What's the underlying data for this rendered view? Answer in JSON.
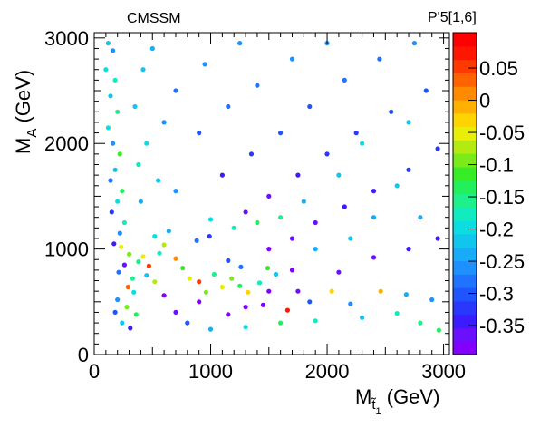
{
  "chart_data": {
    "type": "scatter",
    "title": "CMSSM",
    "xlabel": {
      "main": "M",
      "sub": "t̃",
      "subsub": "1",
      "unit": " (GeV)"
    },
    "ylabel": {
      "main": "M",
      "sub": "A",
      "unit": " (GeV)"
    },
    "colorbar_label": "P'5[1,6]",
    "xlim": [
      0,
      3050
    ],
    "ylim": [
      0,
      3050
    ],
    "clim": [
      -0.395,
      0.105
    ],
    "x_ticks": [
      0,
      1000,
      2000,
      3000
    ],
    "x_tick_labels": [
      "0",
      "1000",
      "2000",
      "3000"
    ],
    "y_ticks": [
      0,
      1000,
      2000,
      3000
    ],
    "y_tick_labels": [
      "0",
      "1000",
      "2000",
      "3000"
    ],
    "colorbar_ticks": [
      0.05,
      0,
      -0.05,
      -0.1,
      -0.15,
      -0.2,
      -0.25,
      -0.3,
      -0.35
    ],
    "colorbar_tick_labels": [
      "0.05",
      "0",
      "-0.05",
      "-0.1",
      "-0.15",
      "-0.2",
      "-0.25",
      "-0.3",
      "-0.35"
    ],
    "colorbar_colors": [
      "#8300ff",
      "#6a10ff",
      "#3a1cff",
      "#2a38ff",
      "#1e55ff",
      "#2173ff",
      "#1e90ff",
      "#18acf6",
      "#10c6ec",
      "#0cdde0",
      "#10ecc0",
      "#1ef08c",
      "#22f05a",
      "#36ec26",
      "#7aea1a",
      "#b2ea12",
      "#e8ee0a",
      "#ffd400",
      "#ffb000",
      "#ff8a00",
      "#ff6200",
      "#ff3a00",
      "#ff1600",
      "#ff0000"
    ],
    "grid": false,
    "legend": "none",
    "points": [
      [
        120,
        2950,
        -0.22
      ],
      [
        160,
        2880,
        -0.25
      ],
      [
        100,
        2700,
        -0.2
      ],
      [
        180,
        2600,
        -0.18
      ],
      [
        140,
        2450,
        -0.22
      ],
      [
        200,
        2300,
        -0.15
      ],
      [
        120,
        2150,
        -0.2
      ],
      [
        160,
        2000,
        -0.27
      ],
      [
        220,
        1900,
        -0.12
      ],
      [
        180,
        1750,
        -0.22
      ],
      [
        140,
        1650,
        -0.28
      ],
      [
        240,
        1550,
        -0.13
      ],
      [
        200,
        1450,
        -0.2
      ],
      [
        150,
        1350,
        -0.32
      ],
      [
        260,
        1250,
        -0.17
      ],
      [
        220,
        1150,
        -0.25
      ],
      [
        170,
        1050,
        -0.35
      ],
      [
        230,
        1020,
        -0.05
      ],
      [
        300,
        950,
        -0.1
      ],
      [
        260,
        850,
        -0.36
      ],
      [
        210,
        780,
        -0.28
      ],
      [
        330,
        720,
        -0.15
      ],
      [
        290,
        640,
        0.04
      ],
      [
        340,
        590,
        -0.2
      ],
      [
        200,
        520,
        -0.26
      ],
      [
        280,
        450,
        -0.1
      ],
      [
        180,
        400,
        -0.3
      ],
      [
        360,
        380,
        -0.14
      ],
      [
        240,
        300,
        -0.22
      ],
      [
        310,
        250,
        -0.34
      ],
      [
        420,
        930,
        -0.05
      ],
      [
        470,
        840,
        0.05
      ],
      [
        450,
        750,
        -0.22
      ],
      [
        520,
        690,
        -0.08
      ],
      [
        380,
        880,
        -0.16
      ],
      [
        600,
        1040,
        -0.08
      ],
      [
        560,
        960,
        -0.18
      ],
      [
        700,
        910,
        0.02
      ],
      [
        760,
        820,
        -0.12
      ],
      [
        820,
        720,
        -0.06
      ],
      [
        900,
        690,
        0.06
      ],
      [
        960,
        590,
        -0.1
      ],
      [
        1030,
        760,
        -0.15
      ],
      [
        1100,
        640,
        -0.06
      ],
      [
        1180,
        720,
        -0.09
      ],
      [
        1250,
        650,
        -0.14
      ],
      [
        1320,
        590,
        -0.04
      ],
      [
        1420,
        680,
        -0.17
      ],
      [
        1490,
        820,
        -0.12
      ],
      [
        1560,
        760,
        -0.22
      ],
      [
        1260,
        830,
        -0.28
      ],
      [
        1150,
        890,
        -0.31
      ],
      [
        520,
        1120,
        -0.2
      ],
      [
        640,
        1170,
        -0.24
      ],
      [
        880,
        1080,
        -0.28
      ],
      [
        990,
        1120,
        -0.32
      ],
      [
        1660,
        420,
        0.08
      ],
      [
        2040,
        600,
        -0.03
      ],
      [
        2460,
        600,
        -0.02
      ],
      [
        2680,
        570,
        -0.24
      ],
      [
        2900,
        520,
        -0.27
      ],
      [
        2200,
        480,
        -0.25
      ],
      [
        1850,
        500,
        -0.3
      ],
      [
        2600,
        390,
        -0.18
      ],
      [
        2800,
        300,
        -0.16
      ],
      [
        2960,
        230,
        -0.13
      ],
      [
        2300,
        350,
        -0.21
      ],
      [
        1900,
        320,
        -0.17
      ],
      [
        1600,
        300,
        -0.14
      ],
      [
        1300,
        260,
        -0.2
      ],
      [
        1000,
        240,
        -0.24
      ],
      [
        800,
        300,
        -0.31
      ],
      [
        700,
        400,
        -0.37
      ],
      [
        600,
        560,
        -0.38
      ],
      [
        1150,
        380,
        -0.38
      ],
      [
        1450,
        470,
        -0.38
      ],
      [
        1750,
        600,
        -0.37
      ],
      [
        2100,
        780,
        -0.36
      ],
      [
        2400,
        920,
        -0.36
      ],
      [
        2700,
        1000,
        -0.35
      ],
      [
        2950,
        1100,
        -0.34
      ],
      [
        1500,
        1000,
        -0.38
      ],
      [
        1700,
        1100,
        -0.37
      ],
      [
        1900,
        1250,
        -0.36
      ],
      [
        2150,
        1400,
        -0.35
      ],
      [
        2400,
        1550,
        -0.34
      ],
      [
        2700,
        1750,
        -0.33
      ],
      [
        2950,
        1950,
        -0.32
      ],
      [
        1300,
        1350,
        -0.37
      ],
      [
        1500,
        1500,
        -0.36
      ],
      [
        1750,
        1700,
        -0.34
      ],
      [
        2000,
        1900,
        -0.33
      ],
      [
        2250,
        2100,
        -0.32
      ],
      [
        2550,
        2300,
        -0.31
      ],
      [
        2850,
        2500,
        -0.3
      ],
      [
        1100,
        1700,
        -0.35
      ],
      [
        1350,
        1900,
        -0.33
      ],
      [
        1600,
        2100,
        -0.31
      ],
      [
        1850,
        2350,
        -0.3
      ],
      [
        2150,
        2600,
        -0.29
      ],
      [
        2450,
        2800,
        -0.28
      ],
      [
        2750,
        2950,
        -0.27
      ],
      [
        900,
        2100,
        -0.31
      ],
      [
        1150,
        2350,
        -0.29
      ],
      [
        1400,
        2550,
        -0.28
      ],
      [
        1700,
        2800,
        -0.27
      ],
      [
        2000,
        2950,
        -0.26
      ],
      [
        700,
        2500,
        -0.28
      ],
      [
        950,
        2750,
        -0.26
      ],
      [
        1250,
        2950,
        -0.25
      ],
      [
        500,
        2900,
        -0.24
      ],
      [
        600,
        2200,
        -0.25
      ],
      [
        450,
        2000,
        -0.2
      ],
      [
        380,
        1800,
        -0.17
      ],
      [
        550,
        1650,
        -0.22
      ],
      [
        700,
        1550,
        -0.27
      ],
      [
        400,
        1450,
        -0.23
      ],
      [
        350,
        2350,
        -0.22
      ],
      [
        420,
        2700,
        -0.21
      ],
      [
        1800,
        1450,
        -0.23
      ],
      [
        2100,
        1700,
        -0.22
      ],
      [
        2400,
        1300,
        -0.24
      ],
      [
        2600,
        1600,
        -0.21
      ],
      [
        2800,
        1300,
        -0.23
      ],
      [
        2300,
        2000,
        -0.2
      ],
      [
        2700,
        2200,
        -0.22
      ],
      [
        1600,
        1300,
        -0.16
      ],
      [
        1400,
        1250,
        -0.14
      ],
      [
        1200,
        1200,
        -0.17
      ],
      [
        1000,
        1280,
        -0.2
      ],
      [
        1900,
        1000,
        -0.24
      ],
      [
        2200,
        1100,
        -0.21
      ],
      [
        1300,
        450,
        -0.38
      ],
      [
        1500,
        600,
        -0.39
      ],
      [
        1700,
        800,
        -0.38
      ],
      [
        900,
        500,
        -0.38
      ]
    ]
  }
}
